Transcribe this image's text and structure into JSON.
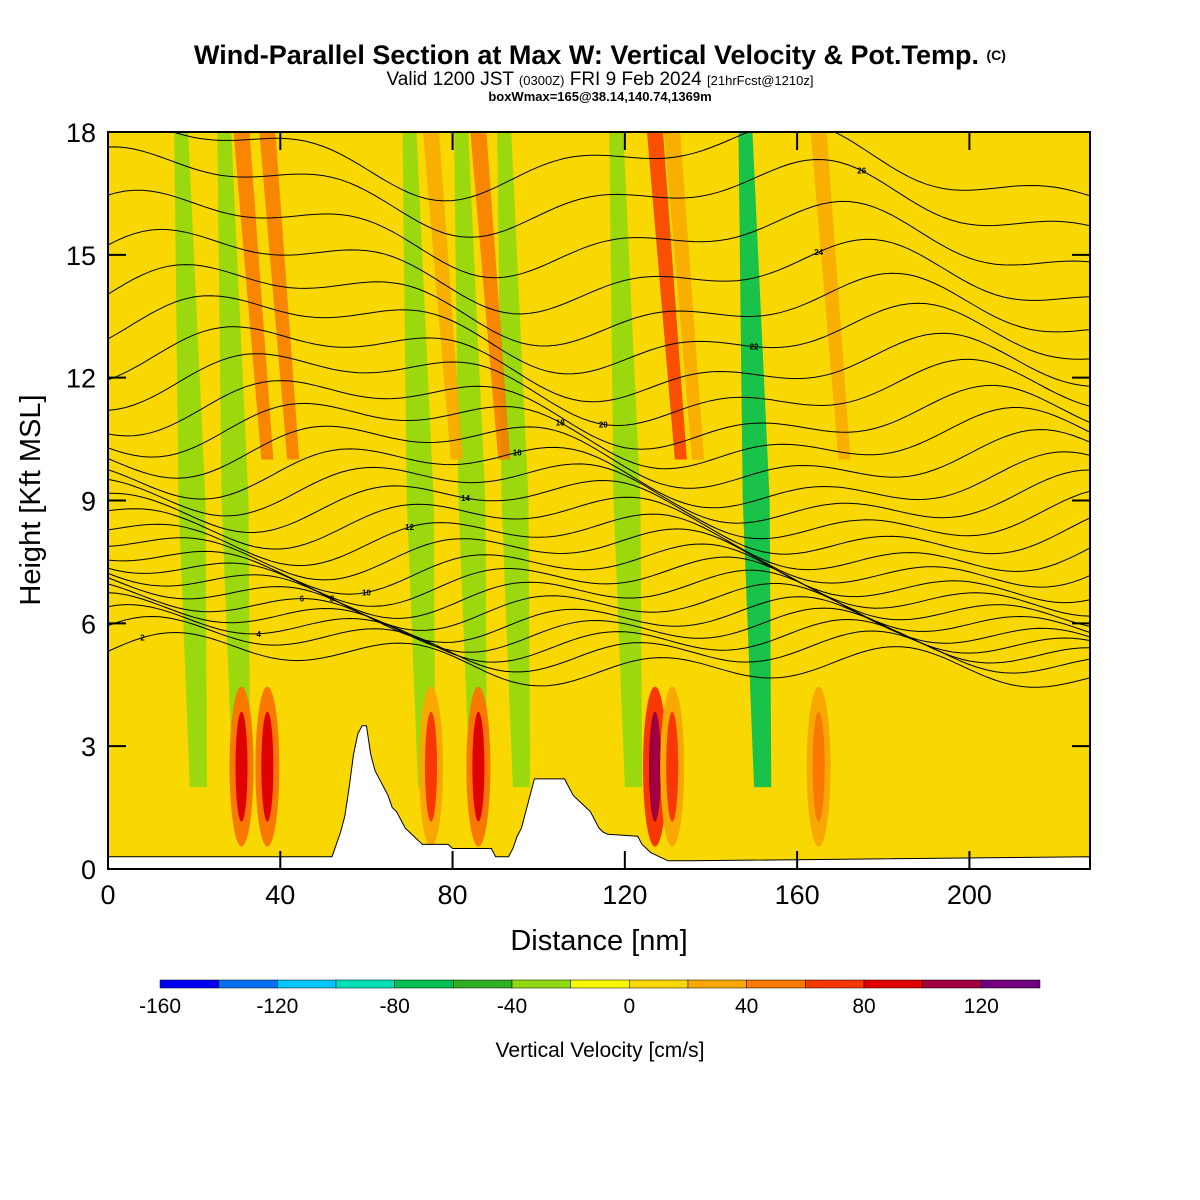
{
  "title": {
    "main": "Wind-Parallel Section at Max W: Vertical Velocity & Pot.Temp.",
    "copyright": "(C)",
    "valid_prefix": "Valid 1200 JST",
    "utc": "(0300Z)",
    "valid_date": "FRI 9 Feb 2024",
    "forecast": "[21hrFcst@1210z]",
    "box_info": "boxWmax=165@38.14,140.74,1369m"
  },
  "chart_data": {
    "type": "heatmap",
    "xlabel": "Distance [nm]",
    "ylabel": "Height [Kft MSL]",
    "xlim": [
      0,
      228
    ],
    "ylim": [
      0,
      18
    ],
    "x_ticks": [
      0,
      40,
      80,
      120,
      160,
      200
    ],
    "y_ticks": [
      0,
      3,
      6,
      9,
      12,
      15,
      18
    ],
    "colorbar": {
      "label": "Vertical Velocity [cm/s]",
      "ticks": [
        -160,
        -120,
        -80,
        -40,
        0,
        40,
        80,
        120
      ],
      "bins": [
        -160,
        -140,
        -120,
        -100,
        -80,
        -60,
        -40,
        -20,
        0,
        20,
        40,
        60,
        80,
        100,
        120,
        140
      ],
      "colors": [
        "#0000f0",
        "#0070f0",
        "#00c8f8",
        "#00e0b8",
        "#00c050",
        "#30b020",
        "#90d810",
        "#f8f800",
        "#f8d800",
        "#f8a800",
        "#f87800",
        "#f83800",
        "#e00000",
        "#a00040",
        "#700080"
      ]
    },
    "background_value_range": [
      0,
      20
    ],
    "updraft_cores": [
      {
        "x": 37,
        "label": "updraft",
        "w": 80
      },
      {
        "x": 31,
        "label": "updraft",
        "w": 80
      },
      {
        "x": 86,
        "label": "updraft",
        "w": 80
      },
      {
        "x": 127,
        "label": "updraft",
        "w": 100
      },
      {
        "x": 131,
        "label": "updraft",
        "w": 60
      },
      {
        "x": 75,
        "label": "updraft",
        "w": 60
      },
      {
        "x": 165,
        "label": "updraft",
        "w": 40
      }
    ],
    "downdraft_bands": [
      {
        "x": 17,
        "w": -40
      },
      {
        "x": 27,
        "w": -40
      },
      {
        "x": 70,
        "w": -40
      },
      {
        "x": 82,
        "w": -40
      },
      {
        "x": 92,
        "w": -40
      },
      {
        "x": 118,
        "w": -40
      },
      {
        "x": 148,
        "w": -80
      }
    ],
    "terrain": [
      [
        0,
        0.3
      ],
      [
        52,
        0.3
      ],
      [
        53,
        0.6
      ],
      [
        54,
        0.9
      ],
      [
        55,
        1.3
      ],
      [
        56,
        2.0
      ],
      [
        57,
        2.8
      ],
      [
        58,
        3.3
      ],
      [
        59,
        3.5
      ],
      [
        60,
        3.5
      ],
      [
        61,
        2.8
      ],
      [
        62,
        2.4
      ],
      [
        63,
        2.2
      ],
      [
        64,
        2.0
      ],
      [
        65,
        1.8
      ],
      [
        66,
        1.5
      ],
      [
        67,
        1.4
      ],
      [
        68,
        1.2
      ],
      [
        69,
        1.0
      ],
      [
        71,
        0.8
      ],
      [
        73,
        0.6
      ],
      [
        79,
        0.6
      ],
      [
        80,
        0.5
      ],
      [
        89,
        0.5
      ],
      [
        90,
        0.3
      ],
      [
        93,
        0.3
      ],
      [
        94,
        0.5
      ],
      [
        95,
        0.8
      ],
      [
        96,
        1.0
      ],
      [
        97,
        1.4
      ],
      [
        98,
        1.8
      ],
      [
        99,
        2.2
      ],
      [
        106,
        2.2
      ],
      [
        107,
        2.0
      ],
      [
        108,
        1.8
      ],
      [
        110,
        1.6
      ],
      [
        112,
        1.4
      ],
      [
        113,
        1.2
      ],
      [
        114,
        1.0
      ],
      [
        115,
        0.9
      ],
      [
        116,
        0.85
      ],
      [
        123,
        0.8
      ],
      [
        124,
        0.6
      ],
      [
        125,
        0.5
      ],
      [
        126,
        0.4
      ],
      [
        128,
        0.3
      ],
      [
        130,
        0.2
      ],
      [
        135,
        0.2
      ],
      [
        228,
        0.3
      ]
    ],
    "theta_contour_labels": [
      "2",
      "4",
      "6",
      "8",
      "10",
      "12",
      "14",
      "16",
      "18",
      "20",
      "22",
      "24",
      "26"
    ],
    "theta_levels_plotted": [
      2,
      3,
      4,
      5,
      6,
      7,
      8,
      9,
      10,
      11,
      12,
      13,
      14,
      15,
      16,
      17,
      18,
      19,
      20,
      21,
      22,
      23,
      24,
      25,
      26,
      27
    ],
    "theta_base_heights": [
      5.0,
      5.35,
      5.6,
      5.85,
      6.1,
      6.4,
      6.7,
      7.0,
      7.3,
      7.65,
      8.0,
      8.4,
      8.8,
      9.2,
      9.6,
      10.1,
      10.6,
      11.1,
      11.7,
      12.3,
      13.0,
      13.7,
      14.5,
      15.4,
      16.4,
      17.3
    ]
  }
}
